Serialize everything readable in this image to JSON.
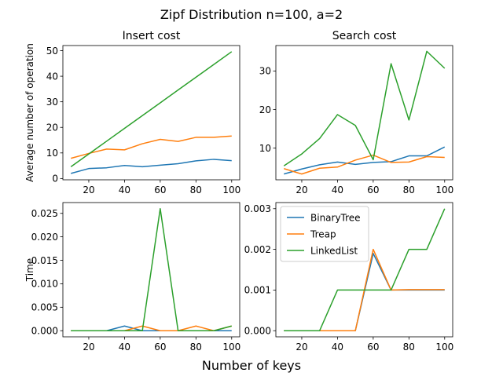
{
  "figure": {
    "suptitle": "Zipf Distribution n=100, a=2",
    "supxlabel": "Number of keys"
  },
  "chart_data": [
    {
      "type": "line",
      "panel": "top-left",
      "title": "Insert cost",
      "xlabel": "",
      "ylabel": "Average number of operation",
      "xlim": [
        5.5,
        104.5
      ],
      "ylim": [
        -0.5,
        52
      ],
      "xticks": [
        20,
        40,
        60,
        80,
        100
      ],
      "yticks": [
        0,
        10,
        20,
        30,
        40,
        50
      ],
      "ytick_labels": [
        "0",
        "10",
        "20",
        "30",
        "40",
        "50"
      ],
      "x": [
        10,
        20,
        30,
        40,
        50,
        60,
        70,
        80,
        90,
        100
      ],
      "series": [
        {
          "color": "#1f77b4",
          "values": [
            2.0,
            3.9,
            4.2,
            5.1,
            4.6,
            5.2,
            5.8,
            6.9,
            7.5,
            7.0
          ]
        },
        {
          "color": "#ff7f0e",
          "values": [
            7.9,
            9.8,
            11.5,
            11.2,
            13.6,
            15.3,
            14.5,
            16.1,
            16.1,
            16.6
          ]
        },
        {
          "color": "#2ca02c",
          "values": [
            4.6,
            9.6,
            14.6,
            19.6,
            24.6,
            29.6,
            34.6,
            39.6,
            44.6,
            49.6
          ]
        }
      ],
      "grid": false
    },
    {
      "type": "line",
      "panel": "top-right",
      "title": "Search cost",
      "xlabel": "",
      "ylabel": "",
      "xlim": [
        5.5,
        104.5
      ],
      "ylim": [
        1.8,
        36.6
      ],
      "xticks": [
        20,
        40,
        60,
        80,
        100
      ],
      "yticks": [
        10,
        20,
        30
      ],
      "ytick_labels": [
        "10",
        "20",
        "30"
      ],
      "x": [
        10,
        20,
        30,
        40,
        50,
        60,
        70,
        80,
        90,
        100
      ],
      "series": [
        {
          "color": "#1f77b4",
          "values": [
            3.3,
            4.6,
            5.7,
            6.4,
            5.8,
            6.3,
            6.5,
            8.0,
            8.0,
            10.3
          ]
        },
        {
          "color": "#ff7f0e",
          "values": [
            4.7,
            3.3,
            4.8,
            5.1,
            6.9,
            8.2,
            6.3,
            6.4,
            7.8,
            7.6
          ]
        },
        {
          "color": "#2ca02c",
          "values": [
            5.4,
            8.5,
            12.5,
            18.7,
            15.9,
            7.0,
            31.9,
            17.3,
            35.1,
            30.7
          ]
        }
      ],
      "grid": false
    },
    {
      "type": "line",
      "panel": "bottom-left",
      "title": "",
      "xlabel": "",
      "ylabel": "Time",
      "xlim": [
        5.5,
        104.5
      ],
      "ylim": [
        -0.0013,
        0.0273
      ],
      "xticks": [
        20,
        40,
        60,
        80,
        100
      ],
      "yticks": [
        0,
        0.005,
        0.01,
        0.015,
        0.02,
        0.025
      ],
      "ytick_labels": [
        "0.000",
        "0.005",
        "0.010",
        "0.015",
        "0.020",
        "0.025"
      ],
      "x": [
        10,
        20,
        30,
        40,
        50,
        60,
        70,
        80,
        90,
        100
      ],
      "series": [
        {
          "color": "#1f77b4",
          "values": [
            0.0,
            0.0,
            0.0,
            0.001,
            0.0,
            0.0,
            0.0,
            0.0,
            0.0,
            0.0
          ]
        },
        {
          "color": "#ff7f0e",
          "values": [
            0.0,
            0.0,
            0.0,
            0.0,
            0.001,
            0.0,
            0.0,
            0.001,
            0.0,
            0.001
          ]
        },
        {
          "color": "#2ca02c",
          "values": [
            0.0,
            0.0,
            0.0,
            0.0,
            0.0,
            0.026,
            0.0,
            0.0,
            0.0,
            0.001
          ]
        }
      ],
      "grid": false
    },
    {
      "type": "line",
      "panel": "bottom-right",
      "title": "",
      "xlabel": "",
      "ylabel": "",
      "xlim": [
        5.5,
        104.5
      ],
      "ylim": [
        -0.00015,
        0.00315
      ],
      "xticks": [
        20,
        40,
        60,
        80,
        100
      ],
      "yticks": [
        0,
        0.001,
        0.002,
        0.003
      ],
      "ytick_labels": [
        "0.000",
        "0.001",
        "0.002",
        "0.003"
      ],
      "x": [
        10,
        20,
        30,
        40,
        50,
        60,
        70,
        80,
        90,
        100
      ],
      "series": [
        {
          "name": "BinaryTree",
          "color": "#1f77b4",
          "values": [
            0.0,
            0.0,
            0.0,
            0.0,
            0.0,
            0.0019,
            0.001,
            0.001,
            0.001,
            0.001
          ]
        },
        {
          "name": "Treap",
          "color": "#ff7f0e",
          "values": [
            0.0,
            0.0,
            0.0,
            0.0,
            0.0,
            0.002,
            0.001,
            0.00101,
            0.00101,
            0.00101
          ]
        },
        {
          "name": "LinkedList",
          "color": "#2ca02c",
          "values": [
            0.0,
            0.0,
            0.0,
            0.001,
            0.001,
            0.001,
            0.001,
            0.002,
            0.002,
            0.003
          ]
        }
      ],
      "legend": {
        "placement": "upper-left",
        "entries": [
          "BinaryTree",
          "Treap",
          "LinkedList"
        ]
      },
      "grid": false
    }
  ]
}
